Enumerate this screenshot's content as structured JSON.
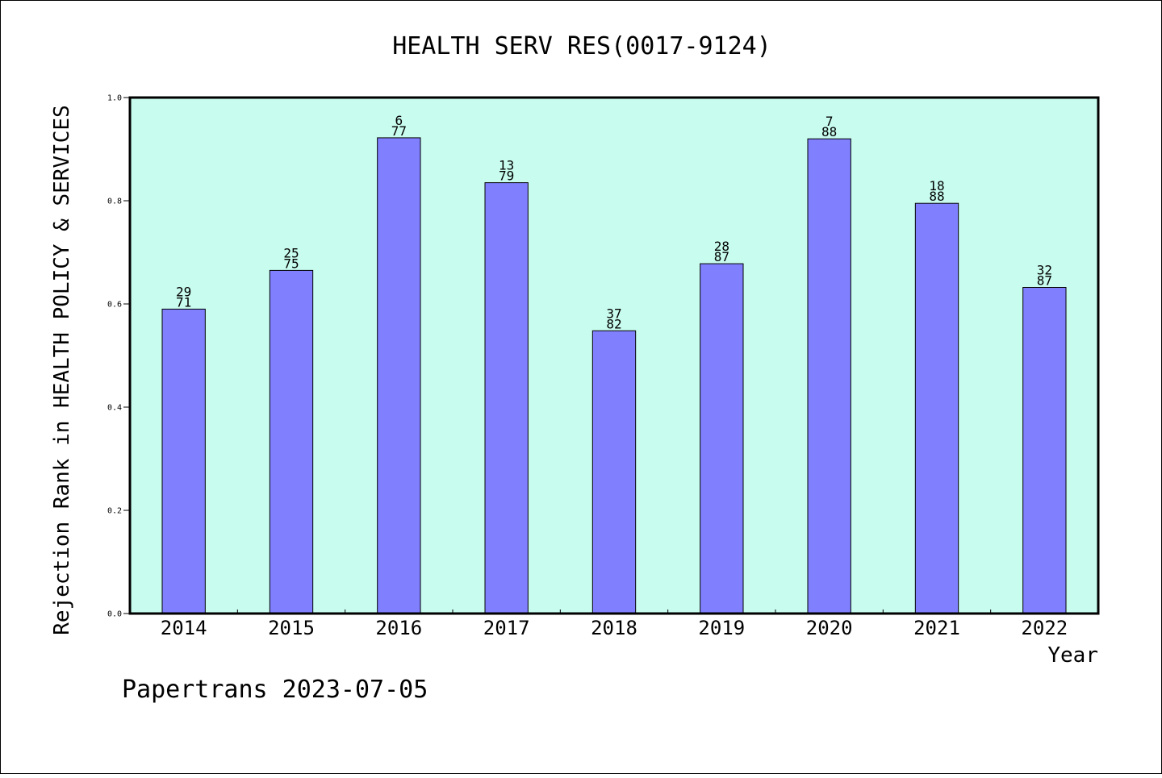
{
  "chart_data": {
    "type": "bar",
    "title": "HEALTH SERV RES(0017-9124)",
    "xlabel": "Year",
    "ylabel": "Rejection Rank in HEALTH POLICY & SERVICES",
    "categories": [
      "2014",
      "2015",
      "2016",
      "2017",
      "2018",
      "2019",
      "2020",
      "2021",
      "2022"
    ],
    "values": [
      0.59,
      0.665,
      0.922,
      0.835,
      0.548,
      0.678,
      0.92,
      0.795,
      0.632
    ],
    "bar_labels": [
      {
        "rank": "29",
        "total": "71"
      },
      {
        "rank": "25",
        "total": "75"
      },
      {
        "rank": "6",
        "total": "77"
      },
      {
        "rank": "13",
        "total": "79"
      },
      {
        "rank": "37",
        "total": "82"
      },
      {
        "rank": "28",
        "total": "87"
      },
      {
        "rank": "7",
        "total": "88"
      },
      {
        "rank": "18",
        "total": "88"
      },
      {
        "rank": "32",
        "total": "87"
      }
    ],
    "ylim": [
      0,
      1
    ],
    "yticks": [
      "0.0",
      "0.2",
      "0.4",
      "0.6",
      "0.8",
      "1.0"
    ],
    "grid": false,
    "colors": {
      "plot_background": "#c8fcee",
      "bar_fill": "#8080ff",
      "bar_stroke": "#000000"
    }
  },
  "footer": "Papertrans 2023-07-05"
}
